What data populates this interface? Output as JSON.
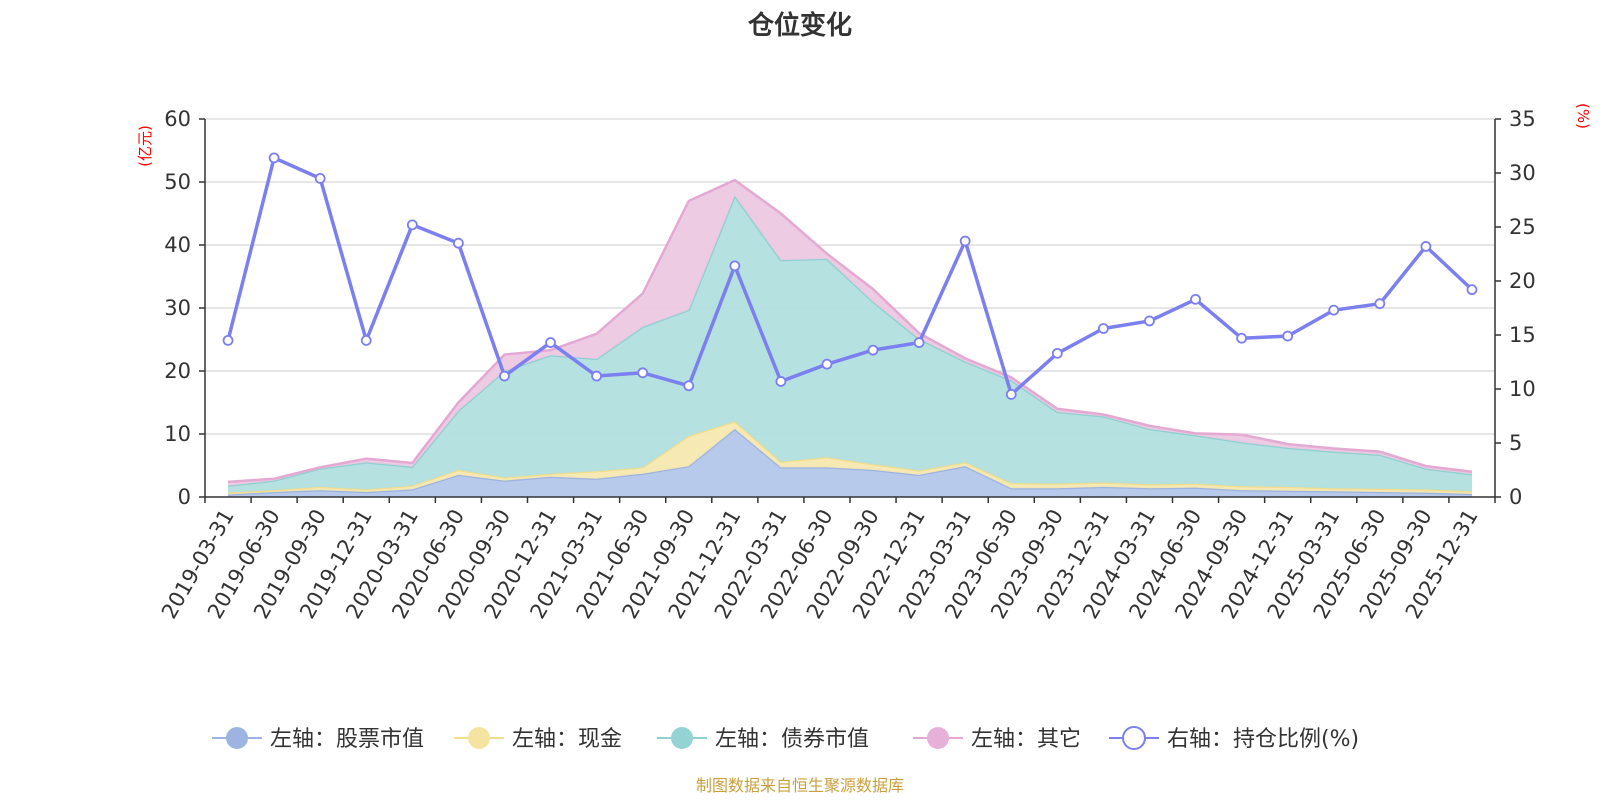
{
  "chart_data": {
    "type": "area",
    "title": "仓位变化",
    "left_axis_unit": "(亿元)",
    "right_axis_unit": "(%)",
    "ylim_left": [
      0,
      60
    ],
    "ylim_right": [
      0,
      35
    ],
    "yticks_left": [
      0,
      10,
      20,
      30,
      40,
      50,
      60
    ],
    "yticks_right": [
      0,
      5,
      10,
      15,
      20,
      25,
      30,
      35
    ],
    "categories": [
      "2019-03-31",
      "2019-06-30",
      "2019-09-30",
      "2019-12-31",
      "2020-03-31",
      "2020-06-30",
      "2020-09-30",
      "2020-12-31",
      "2021-03-31",
      "2021-06-30",
      "2021-09-30",
      "2021-12-31",
      "2022-03-31",
      "2022-06-30",
      "2022-09-30",
      "2022-12-31",
      "2023-03-31",
      "2023-06-30",
      "2023-09-30",
      "2023-12-31",
      "2024-03-31",
      "2024-06-30",
      "2024-09-30",
      "2024-12-31",
      "2025-03-31",
      "2025-06-30",
      "2025-09-30",
      "2025-12-31"
    ],
    "series": [
      {
        "name": "左轴：股票市值",
        "axis": "left",
        "stack": true,
        "color": "#9db4e0",
        "fill": "#b4c7ea",
        "values": [
          0.4,
          0.8,
          1.1,
          0.8,
          1.2,
          3.5,
          2.6,
          3.2,
          2.9,
          3.7,
          4.9,
          10.8,
          4.7,
          4.7,
          4.3,
          3.5,
          4.9,
          1.4,
          1.4,
          1.6,
          1.4,
          1.5,
          1.1,
          1.0,
          0.9,
          0.8,
          0.7,
          0.5
        ]
      },
      {
        "name": "左轴：现金",
        "axis": "left",
        "stack": true,
        "color": "#f2dd8c",
        "fill": "#f5e8b0",
        "values": [
          0.3,
          0.3,
          0.5,
          0.4,
          0.6,
          0.8,
          0.5,
          0.5,
          1.2,
          1.0,
          4.8,
          1.2,
          0.9,
          1.6,
          0.9,
          0.7,
          0.6,
          0.8,
          0.7,
          0.7,
          0.6,
          0.6,
          0.6,
          0.6,
          0.5,
          0.5,
          0.5,
          0.4
        ]
      },
      {
        "name": "左轴：债券市值",
        "axis": "left",
        "stack": true,
        "color": "#8fd0d0",
        "fill": "#b1dfdf",
        "values": [
          1.1,
          1.5,
          2.9,
          4.3,
          3.0,
          9.4,
          16.9,
          18.8,
          17.8,
          22.3,
          20.0,
          35.8,
          32.0,
          31.5,
          25.8,
          20.9,
          16.0,
          16.3,
          11.4,
          10.5,
          8.8,
          7.7,
          7.0,
          6.2,
          5.8,
          5.4,
          3.3,
          2.7
        ]
      },
      {
        "name": "左轴：其它",
        "axis": "left",
        "stack": true,
        "color": "#e4a9d2",
        "fill": "#ecc8e2",
        "values": [
          0.6,
          0.3,
          0.2,
          0.6,
          0.6,
          1.3,
          2.6,
          0.8,
          4.0,
          5.3,
          17.3,
          2.5,
          7.4,
          0.8,
          2.0,
          0.9,
          0.5,
          0.5,
          0.5,
          0.3,
          0.5,
          0.3,
          1.2,
          0.6,
          0.5,
          0.5,
          0.4,
          0.4
        ]
      },
      {
        "name": "右轴：持仓比例(%)",
        "axis": "right",
        "stack": false,
        "color": "#7b7ff0",
        "fill": "#ffffff",
        "values": [
          14.5,
          31.4,
          29.5,
          14.5,
          25.2,
          23.5,
          11.2,
          14.3,
          11.2,
          11.5,
          10.3,
          21.4,
          10.7,
          12.3,
          13.6,
          14.3,
          23.7,
          9.5,
          13.3,
          15.6,
          16.3,
          18.3,
          14.7,
          14.9,
          17.3,
          17.9,
          23.2,
          19.2
        ]
      }
    ]
  },
  "legend": [
    {
      "label": "左轴：股票市值",
      "color": "#9db4e0",
      "fill": "#9db4e0",
      "hollow": false
    },
    {
      "label": "左轴：现金",
      "color": "#f2dd8c",
      "fill": "#f5e3a0",
      "hollow": false
    },
    {
      "label": "左轴：债券市值",
      "color": "#8fd0d0",
      "fill": "#94d3d3",
      "hollow": false
    },
    {
      "label": "左轴：其它",
      "color": "#e4a9d2",
      "fill": "#e6b0d8",
      "hollow": false
    },
    {
      "label": "右轴：持仓比例(%)",
      "color": "#7b7ff0",
      "fill": "#ffffff",
      "hollow": true
    }
  ],
  "source_note": "制图数据来自恒生聚源数据库",
  "colors": {
    "unit_label": "#ff0000",
    "axis": "#333333",
    "grid": "#cccccc"
  }
}
